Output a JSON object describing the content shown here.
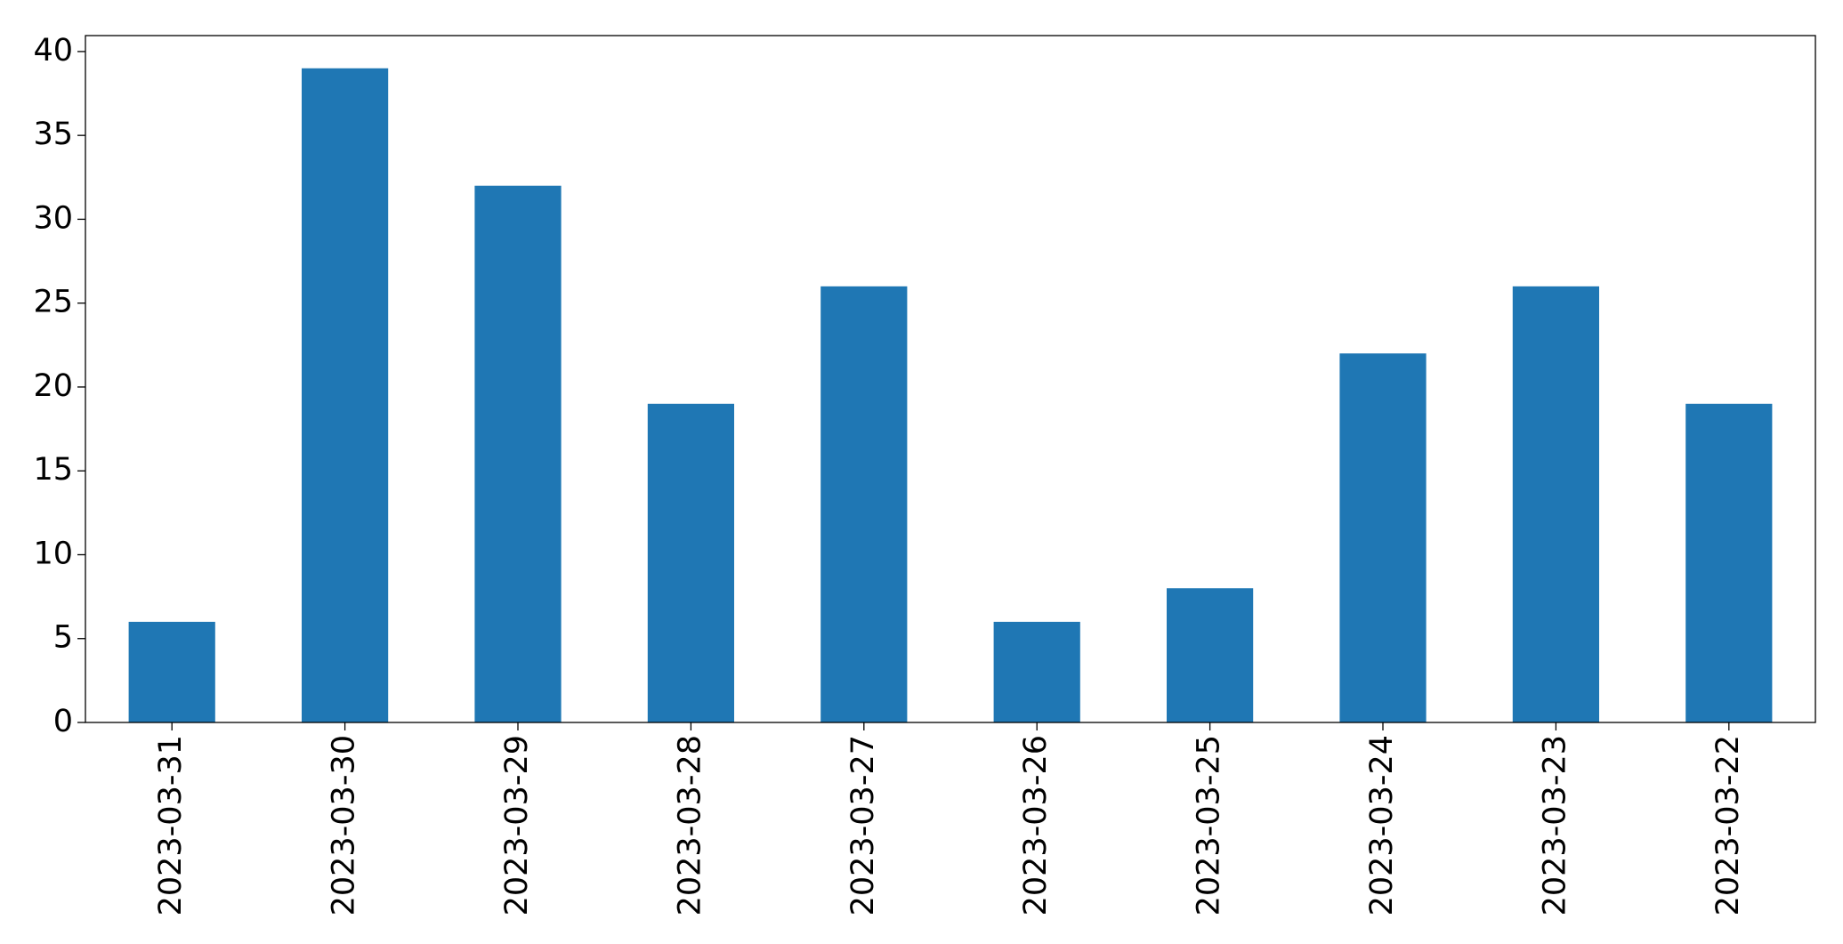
{
  "chart_data": {
    "type": "bar",
    "categories": [
      "2023-03-31",
      "2023-03-30",
      "2023-03-29",
      "2023-03-28",
      "2023-03-27",
      "2023-03-26",
      "2023-03-25",
      "2023-03-24",
      "2023-03-23",
      "2023-03-22"
    ],
    "values": [
      6,
      39,
      32,
      19,
      26,
      6,
      8,
      22,
      26,
      19
    ],
    "color": "#1f77b4",
    "ylim": [
      0,
      40.95
    ],
    "yticks": [
      0,
      5,
      10,
      15,
      20,
      25,
      30,
      35,
      40
    ],
    "grid": false
  }
}
